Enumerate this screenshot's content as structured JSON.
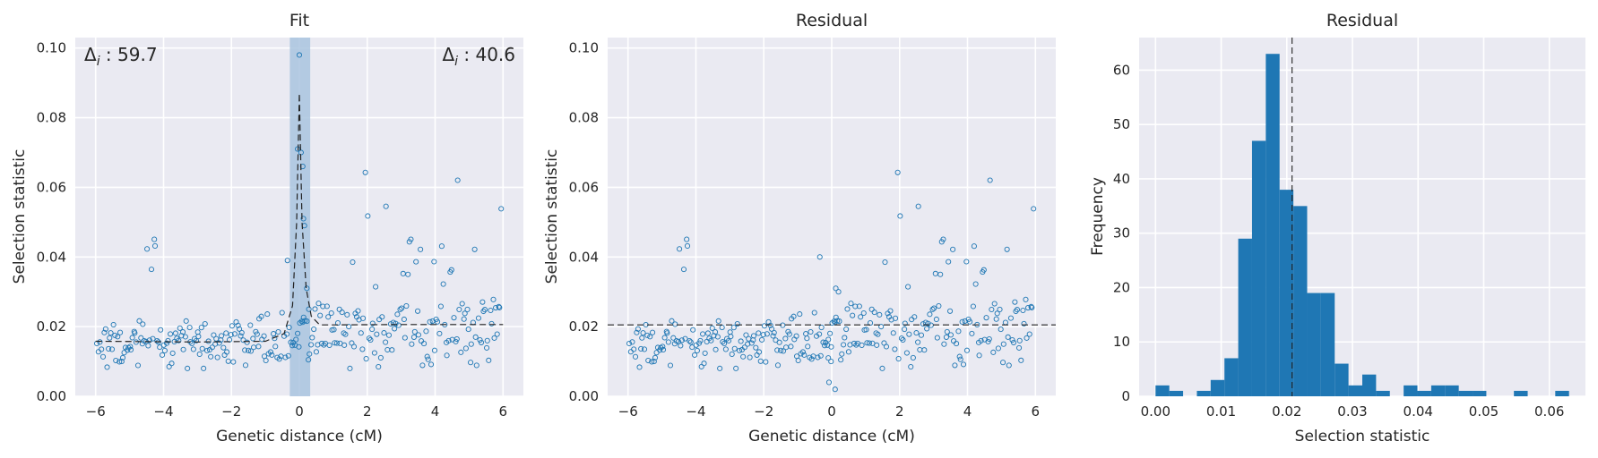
{
  "chart_data": [
    {
      "type": "scatter",
      "title": "Fit",
      "xlabel": "Genetic distance (cM)",
      "ylabel": "Selection statistic",
      "xlim": [
        -6.6,
        6.6
      ],
      "ylim": [
        0,
        0.103
      ],
      "xticks": [
        -6,
        -4,
        -2,
        0,
        2,
        4,
        6
      ],
      "xtick_labels": [
        "−6",
        "−4",
        "−2",
        "0",
        "2",
        "4",
        "6"
      ],
      "yticks": [
        0,
        0.02,
        0.04,
        0.06,
        0.08,
        0.1
      ],
      "ytick_labels": [
        "0.00",
        "0.02",
        "0.04",
        "0.06",
        "0.08",
        "0.10"
      ],
      "grid": true,
      "shaded_region": {
        "x0": -0.28,
        "x1": 0.32,
        "color": "#a9c4df"
      },
      "annotations": [
        {
          "text": "Δ",
          "sub": "i",
          "value": " : 59.7",
          "position": "top-left"
        },
        {
          "text": "Δ",
          "sub": "i",
          "value": " : 40.6",
          "position": "top-right"
        }
      ],
      "fit_line": {
        "style": "dashed",
        "points": [
          [
            -6,
            0.0158
          ],
          [
            -3,
            0.0156
          ],
          [
            -1,
            0.0158
          ],
          [
            -0.45,
            0.018
          ],
          [
            -0.2,
            0.026
          ],
          [
            -0.08,
            0.05
          ],
          [
            0,
            0.087
          ],
          [
            0.08,
            0.05
          ],
          [
            0.2,
            0.031
          ],
          [
            0.35,
            0.023
          ],
          [
            0.6,
            0.0205
          ],
          [
            1,
            0.0205
          ],
          [
            3,
            0.0206
          ],
          [
            6,
            0.0206
          ]
        ]
      },
      "series": [
        {
          "marker": "open-circle",
          "color": "#1f77b4",
          "seed": 7,
          "with_peak": true
        }
      ]
    },
    {
      "type": "scatter",
      "title": "Residual",
      "xlabel": "Genetic distance (cM)",
      "ylabel": "Selection statistic",
      "xlim": [
        -6.6,
        6.6
      ],
      "ylim": [
        0,
        0.103
      ],
      "xticks": [
        -6,
        -4,
        -2,
        0,
        2,
        4,
        6
      ],
      "xtick_labels": [
        "−6",
        "−4",
        "−2",
        "0",
        "2",
        "4",
        "6"
      ],
      "yticks": [
        0,
        0.02,
        0.04,
        0.06,
        0.08,
        0.1
      ],
      "ytick_labels": [
        "0.00",
        "0.02",
        "0.04",
        "0.06",
        "0.08",
        "0.10"
      ],
      "grid": true,
      "hline": {
        "y": 0.0205,
        "style": "dashed"
      },
      "series": [
        {
          "marker": "open-circle",
          "color": "#1f77b4",
          "seed": 7,
          "with_peak": false
        }
      ]
    },
    {
      "type": "bar",
      "title": "Residual",
      "xlabel": "Selection statistic",
      "ylabel": "Frequency",
      "xlim": [
        -0.0025,
        0.0655
      ],
      "ylim": [
        0,
        66
      ],
      "xticks": [
        0,
        0.01,
        0.02,
        0.03,
        0.04,
        0.05,
        0.06
      ],
      "xtick_labels": [
        "0.00",
        "0.01",
        "0.02",
        "0.03",
        "0.04",
        "0.05",
        "0.06"
      ],
      "yticks": [
        0,
        10,
        20,
        30,
        40,
        50,
        60
      ],
      "ytick_labels": [
        "0",
        "10",
        "20",
        "30",
        "40",
        "50",
        "60"
      ],
      "grid": true,
      "bin_start": 0,
      "bin_width": 0.0021,
      "values": [
        2,
        1,
        0,
        1,
        3,
        7,
        29,
        47,
        63,
        38,
        35,
        19,
        19,
        6,
        2,
        4,
        1,
        0,
        2,
        1,
        2,
        2,
        1,
        1,
        0,
        0,
        1,
        0,
        0,
        1
      ],
      "vline": {
        "x": 0.0208,
        "style": "dashed"
      },
      "color": "#1f77b4"
    }
  ]
}
